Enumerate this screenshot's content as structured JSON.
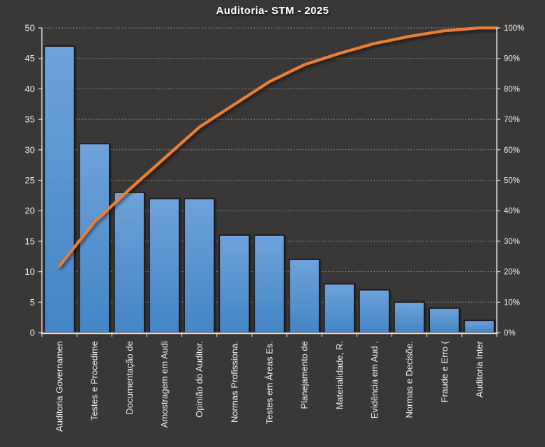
{
  "chart_data": {
    "type": "bar",
    "subtype": "pareto-combo",
    "title": "Auditoria- STM - 2025",
    "categories": [
      "Auditoria Governamen",
      "Testes e Procedime",
      "Documentação de",
      "Amostragem em Audi",
      "Opinião do Auditor.",
      "Normas Profissiona.",
      "Testes em Áreas Es.",
      "Planejamento de",
      "Materialidade, R.",
      "Evidência em Aud .",
      "Normas e Decisõe.",
      "Fraude e Erro (",
      "Auditoria Inter"
    ],
    "series": [
      {
        "role": "frequency-bars",
        "type": "bar",
        "axis": "left",
        "values": [
          47,
          31,
          23,
          22,
          22,
          16,
          16,
          12,
          8,
          7,
          5,
          4,
          2
        ]
      },
      {
        "role": "cumulative-percent-line",
        "type": "line",
        "axis": "right",
        "values_pct": [
          21.86,
          36.28,
          46.98,
          57.21,
          67.44,
          74.88,
          82.33,
          87.91,
          91.63,
          94.88,
          97.21,
          99.07,
          100.0
        ]
      }
    ],
    "left_axis": {
      "min": 0,
      "max": 50,
      "step": 5,
      "tick_labels": [
        "0",
        "5",
        "10",
        "15",
        "20",
        "25",
        "30",
        "35",
        "40",
        "45",
        "50"
      ]
    },
    "right_axis": {
      "min": 0,
      "max": 100,
      "step": 10,
      "tick_labels": [
        "0%",
        "10%",
        "20%",
        "30%",
        "40%",
        "50%",
        "60%",
        "70%",
        "80%",
        "90%",
        "100%"
      ]
    },
    "grid": {
      "horizontal": true,
      "style": "dotted"
    },
    "legend": "none",
    "colors": {
      "background": "#3A3837",
      "bar_top": "#6FA2DA",
      "bar_bottom": "#4385C5",
      "bar_border": "#141414",
      "line": "#ED7D31",
      "grid": "#A9A7A5",
      "axis": "#DEDDDC",
      "text": "#F1F0EF"
    }
  }
}
